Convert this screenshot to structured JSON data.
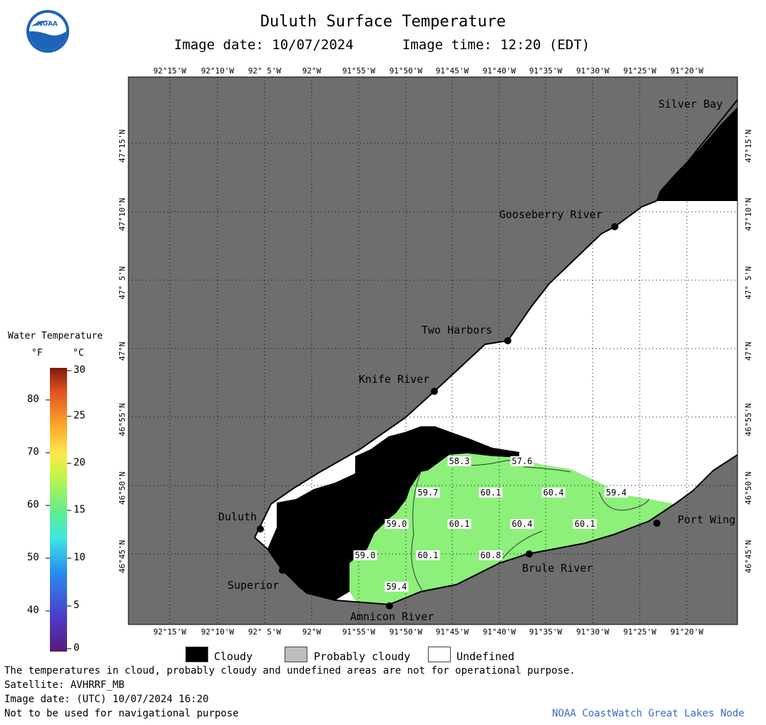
{
  "title": "Duluth Surface Temperature",
  "image_date": "Image date: 10/07/2024",
  "image_time": "Image time: 12:20 (EDT)",
  "logo_text": "NOAA",
  "lon_labels": [
    "92°15'W",
    "92°10'W",
    "92° 5'W",
    "92°W",
    "91°55'W",
    "91°50'W",
    "91°45'W",
    "91°40'W",
    "91°35'W",
    "91°30'W",
    "91°25'W",
    "91°20'W"
  ],
  "lat_labels": [
    "47°15'N",
    "47°10'N",
    "47° 5'N",
    "47°N",
    "46°55'N",
    "46°50'N",
    "46°45'N"
  ],
  "places": [
    "Silver Bay",
    "Gooseberry River",
    "Two Harbors",
    "Knife River",
    "Duluth",
    "Superior",
    "Amnicon River",
    "Brule River",
    "Port Wing"
  ],
  "temperature_labels": [
    "58.3",
    "57.6",
    "59.7",
    "60.1",
    "60.4",
    "59.4",
    "59.0",
    "60.1",
    "60.4",
    "60.1",
    "59.0",
    "60.1",
    "60.8",
    "59.4"
  ],
  "colorbar": {
    "title": "Water Temperature",
    "unit_f": "°F",
    "unit_c": "°C",
    "f_ticks": [
      "80",
      "70",
      "60",
      "50",
      "40"
    ],
    "c_ticks": [
      "30",
      "25",
      "20",
      "15",
      "10",
      "5",
      "0"
    ]
  },
  "legend": {
    "cloudy": "Cloudy",
    "probably_cloudy": "Probably cloudy",
    "undefined": "Undefined"
  },
  "notes": {
    "disclaimer": "The temperatures in cloud, probably cloudy and undefined areas are not for operational purpose.",
    "satellite": "Satellite: AVHRRF_MB",
    "utc_date": "Image date: (UTC) 10/07/2024  16:20",
    "nav": "Not to be used for navigational purpose",
    "credit": "NOAA CoastWatch Great Lakes Node"
  },
  "colors": {
    "land": "#6e6e6e",
    "cloud": "#000000",
    "water": "#8cf07a",
    "undefined": "#ffffff",
    "credit": "#3a6ec0"
  }
}
